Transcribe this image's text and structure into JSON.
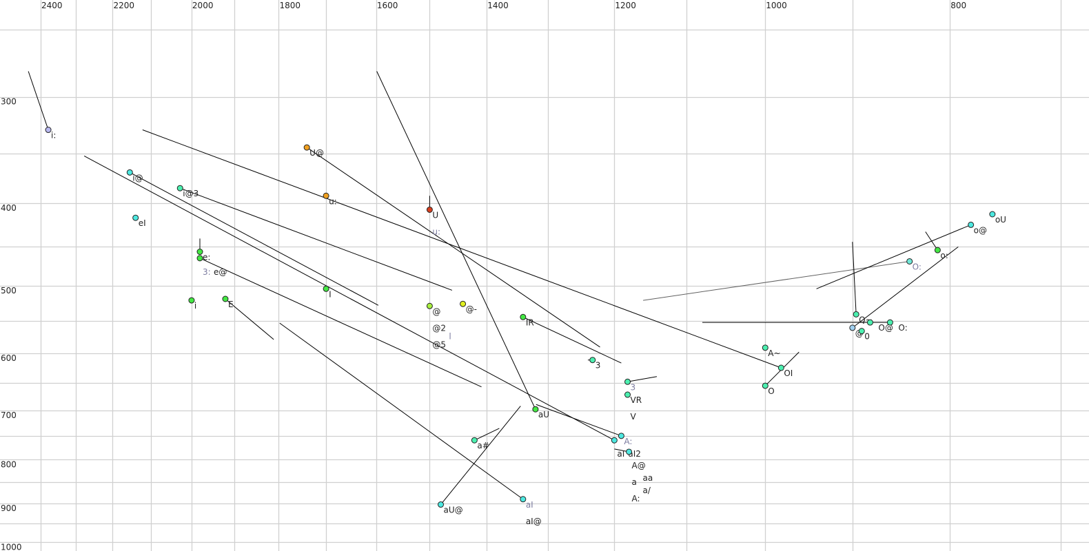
{
  "chart_data": {
    "type": "scatter",
    "title": "",
    "xlabel": "",
    "ylabel": "",
    "x_axis": {
      "quantity": "F2 (Hz)",
      "scale": "log",
      "reversed": true,
      "range": [
        2520,
        676
      ],
      "gridlines": [
        2400,
        2300,
        2200,
        2100,
        2000,
        1900,
        1800,
        1700,
        1600,
        1500,
        1400,
        1300,
        1200,
        1100,
        1000,
        900,
        800,
        700
      ],
      "tick_labels": [
        "2400",
        "2200",
        "2000",
        "1800",
        "1600",
        "1400",
        "1200",
        "1000",
        "800"
      ],
      "position": "top"
    },
    "y_axis": {
      "quantity": "F1 (Hz)",
      "scale": "log",
      "reversed": false,
      "range": [
        231,
        1021
      ],
      "gridlines": [
        250,
        300,
        350,
        400,
        450,
        500,
        550,
        600,
        650,
        700,
        750,
        800,
        850,
        900,
        950,
        1000
      ],
      "tick_labels": [
        "300",
        "400",
        "500",
        "600",
        "700",
        "800",
        "900",
        "1000"
      ],
      "position": "left"
    },
    "grid": true,
    "colors": {
      "cyan": "#4de8e0",
      "aqua": "#4cf0b0",
      "green": "#44e844",
      "orange": "#f0a020",
      "red": "#d84020",
      "lavender": "#b8b8f0",
      "lime": "#a8f040",
      "yellow": "#e0f020",
      "lightblue": "#a0d0f0",
      "line": "#000000",
      "muted_line": "#606060",
      "muted_label": "#7c7ca0",
      "grid": "#d0d0d0"
    },
    "points": [
      {
        "f2": 2378,
        "f1": 328,
        "color": "#b8b8f0",
        "labels": [
          {
            "text": "i:"
          }
        ]
      },
      {
        "f2": 2155,
        "f1": 368,
        "color": "#4de8e0",
        "labels": [
          {
            "text": "i@"
          }
        ]
      },
      {
        "f2": 2028,
        "f1": 384,
        "color": "#4cf0b0",
        "labels": [
          {
            "text": "i@3"
          }
        ]
      },
      {
        "f2": 2140,
        "f1": 416,
        "color": "#4de8e0",
        "labels": [
          {
            "text": "eI"
          }
        ]
      },
      {
        "f2": 1980,
        "f1": 456,
        "color": "#44e844",
        "labels": [
          {
            "text": "e:"
          }
        ]
      },
      {
        "f2": 1980,
        "f1": 464,
        "color": "#44e844",
        "labels": [
          {
            "text": "3:",
            "muted": true
          },
          {
            "text": "e@"
          }
        ]
      },
      {
        "f2": 2000,
        "f1": 520,
        "color": "#44e844",
        "labels": [
          {
            "text": "i"
          }
        ]
      },
      {
        "f2": 1920,
        "f1": 518,
        "color": "#44e844",
        "labels": [
          {
            "text": "E"
          }
        ]
      },
      {
        "f2": 1740,
        "f1": 344,
        "color": "#f0a020",
        "labels": [
          {
            "text": "U@"
          }
        ]
      },
      {
        "f2": 1700,
        "f1": 392,
        "color": "#f0a020",
        "labels": [
          {
            "text": "u:"
          }
        ]
      },
      {
        "f2": 1500,
        "f1": 407,
        "color": "#d84020",
        "labels": [
          {
            "text": "U"
          },
          {
            "text": "u:",
            "muted": true
          }
        ]
      },
      {
        "f2": 1700,
        "f1": 504,
        "color": "#44e844",
        "labels": [
          {
            "text": "I"
          }
        ]
      },
      {
        "f2": 1500,
        "f1": 528,
        "color": "#a8f040",
        "labels": [
          {
            "text": "@"
          },
          {
            "text": "@2"
          },
          {
            "text": "@5"
          },
          {
            "text": "l",
            "muted": true
          }
        ]
      },
      {
        "f2": 1441,
        "f1": 525,
        "color": "#e0f020",
        "labels": [
          {
            "text": "@-"
          }
        ]
      },
      {
        "f2": 1340,
        "f1": 544,
        "color": "#44e844",
        "labels": [
          {
            "text": "IR"
          }
        ]
      },
      {
        "f2": 1232,
        "f1": 611,
        "color": "#4cf0b0",
        "labels": [
          {
            "text": "3"
          }
        ]
      },
      {
        "f2": 1181,
        "f1": 648,
        "color": "#4cf0b0",
        "labels": [
          {
            "text": "3",
            "muted": true
          }
        ]
      },
      {
        "f2": 1181,
        "f1": 671,
        "color": "#4cf0b0",
        "labels": [
          {
            "text": "VR"
          },
          {
            "text": "V"
          }
        ]
      },
      {
        "f2": 1320,
        "f1": 698,
        "color": "#44e844",
        "labels": [
          {
            "text": "aU"
          }
        ]
      },
      {
        "f2": 1421,
        "f1": 759,
        "color": "#4cf0b0",
        "labels": [
          {
            "text": "a#"
          }
        ]
      },
      {
        "f2": 1480,
        "f1": 903,
        "color": "#4de8e0",
        "labels": [
          {
            "text": "aU@"
          }
        ]
      },
      {
        "f2": 1340,
        "f1": 890,
        "color": "#4de8e0",
        "labels": [
          {
            "text": "aI",
            "muted": true
          },
          {
            "text": "aI@"
          }
        ]
      },
      {
        "f2": 1190,
        "f1": 750,
        "color": "#4de8e0",
        "labels": [
          {
            "text": "A:",
            "muted": true
          }
        ]
      },
      {
        "f2": 1200,
        "f1": 759,
        "color": "#4de8e0",
        "labels": [
          {
            "text": "aI"
          },
          {
            "text": "aI2"
          }
        ]
      },
      {
        "f2": 1179,
        "f1": 783,
        "color": "#4de8e0",
        "labels": [
          {
            "text": "A@"
          },
          {
            "text": "a"
          },
          {
            "text": "aa"
          },
          {
            "text": "A:"
          },
          {
            "text": "a/"
          }
        ]
      },
      {
        "f2": 1000,
        "f1": 591,
        "color": "#4cf0b0",
        "labels": [
          {
            "text": "A~"
          }
        ]
      },
      {
        "f2": 981,
        "f1": 624,
        "color": "#4cf0b0",
        "labels": [
          {
            "text": "OI"
          }
        ]
      },
      {
        "f2": 1000,
        "f1": 655,
        "color": "#4cf0b0",
        "labels": [
          {
            "text": "O"
          }
        ]
      },
      {
        "f2": 760,
        "f1": 412,
        "color": "#4de8e0",
        "labels": [
          {
            "text": "oU"
          }
        ]
      },
      {
        "f2": 780,
        "f1": 424,
        "color": "#4de8e0",
        "labels": [
          {
            "text": "o@"
          }
        ]
      },
      {
        "f2": 812,
        "f1": 454,
        "color": "#44e844",
        "labels": [
          {
            "text": "o:"
          }
        ]
      },
      {
        "f2": 840,
        "f1": 468,
        "color": "#70e8d8",
        "labels": [
          {
            "text": "O:",
            "muted": true
          }
        ]
      },
      {
        "f2": 896,
        "f1": 540,
        "color": "#4cf0b0",
        "labels": [
          {
            "text": "Q~"
          }
        ]
      },
      {
        "f2": 881,
        "f1": 552,
        "color": "#4cf0b0",
        "labels": [
          {
            "text": "O@"
          }
        ]
      },
      {
        "f2": 860,
        "f1": 552,
        "color": "#4cf0b0",
        "labels": [
          {
            "text": "O:"
          }
        ]
      },
      {
        "f2": 900,
        "f1": 560,
        "color": "#a0d0f0",
        "labels": [
          {
            "text": "@"
          }
        ]
      },
      {
        "f2": 890,
        "f1": 565,
        "color": "#4cf0b0",
        "labels": [
          {
            "text": "0"
          }
        ]
      }
    ],
    "lines": [
      {
        "from": [
          2378,
          328
        ],
        "to": [
          2436,
          280
        ]
      },
      {
        "from": [
          2122,
          328
        ],
        "to": [
          981,
          624
        ]
      },
      {
        "from": [
          2277,
          352
        ],
        "to": [
          1200,
          759
        ]
      },
      {
        "from": [
          2155,
          368
        ],
        "to": [
          1596,
          527
        ]
      },
      {
        "from": [
          2028,
          384
        ],
        "to": [
          1460,
          506
        ]
      },
      {
        "from": [
          1980,
          464
        ],
        "to": [
          1409,
          657
        ]
      },
      {
        "from": [
          1980,
          456
        ],
        "to": [
          1980,
          440
        ]
      },
      {
        "from": [
          1920,
          518
        ],
        "to": [
          1811,
          578
        ]
      },
      {
        "from": [
          1798,
          553
        ],
        "to": [
          1340,
          890
        ]
      },
      {
        "from": [
          1740,
          344
        ],
        "to": [
          1221,
          590
        ]
      },
      {
        "from": [
          1599,
          280
        ],
        "to": [
          1320,
          698
        ]
      },
      {
        "from": [
          1500,
          407
        ],
        "to": [
          1500,
          392
        ]
      },
      {
        "from": [
          1340,
          544
        ],
        "to": [
          1190,
          616
        ]
      },
      {
        "from": [
          1239,
          611
        ],
        "to": [
          1232,
          611
        ]
      },
      {
        "from": [
          1181,
          648
        ],
        "to": [
          1140,
          639
        ]
      },
      {
        "from": [
          1421,
          759
        ],
        "to": [
          1379,
          735
        ]
      },
      {
        "from": [
          1480,
          903
        ],
        "to": [
          1344,
          692
        ]
      },
      {
        "from": [
          1319,
          689
        ],
        "to": [
          1190,
          750
        ]
      },
      {
        "from": [
          1200,
          777
        ],
        "to": [
          1179,
          783
        ]
      },
      {
        "from": [
          1000,
          655
        ],
        "to": [
          960,
          598
        ]
      },
      {
        "from": [
          1079,
          552
        ],
        "to": [
          860,
          552
        ]
      },
      {
        "from": [
          1159,
          520
        ],
        "to": [
          840,
          468
        ],
        "muted": true
      },
      {
        "from": [
          780,
          424
        ],
        "to": [
          940,
          504
        ]
      },
      {
        "from": [
          812,
          454
        ],
        "to": [
          824,
          432
        ]
      },
      {
        "from": [
          900,
          560
        ],
        "to": [
          792,
          450
        ]
      },
      {
        "from": [
          896,
          540
        ],
        "to": [
          900,
          444
        ]
      }
    ]
  }
}
